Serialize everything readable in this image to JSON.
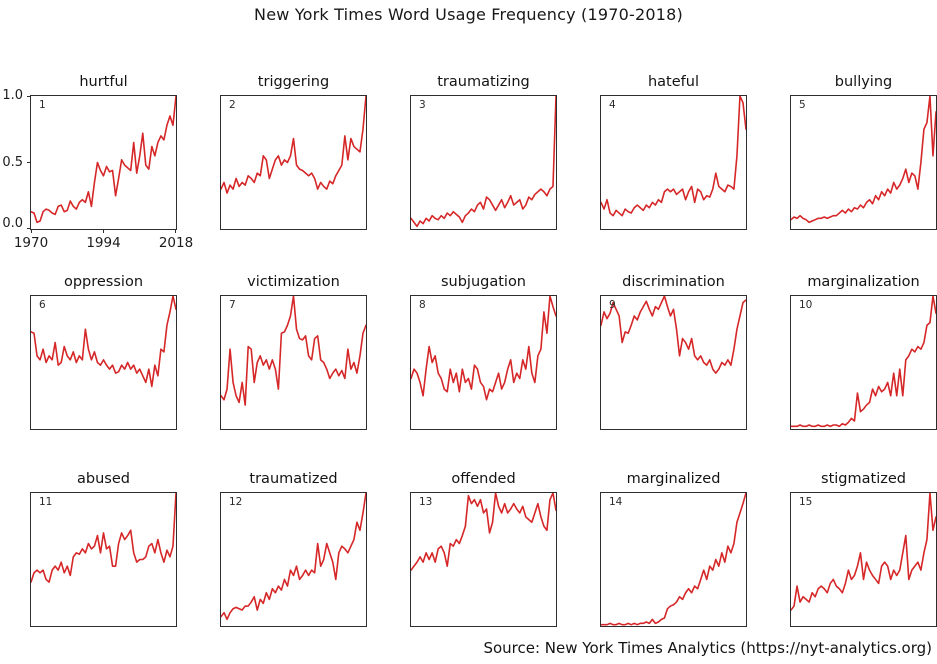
{
  "title": "New York Times Word Usage Frequency (1970-2018)",
  "source": "Source: New York Times Analytics (https://nyt-analytics.org)",
  "accent_color": "#d62728",
  "axis": {
    "y_ticks": [
      "1.0",
      "0.5",
      "0.0"
    ],
    "x_ticks": [
      "1970",
      "1994",
      "2018"
    ],
    "y_range": [
      0.0,
      1.0
    ],
    "x_range": [
      1970,
      2018
    ]
  },
  "layout": {
    "columns": 5,
    "rows": 3,
    "row_tops": [
      73,
      273,
      470
    ],
    "grid": false,
    "legend": "none"
  },
  "chart_data": [
    {
      "type": "line",
      "index": "1",
      "title": "hurtful",
      "x_start": 1970,
      "x_end": 2018,
      "values": [
        0.13,
        0.12,
        0.05,
        0.06,
        0.13,
        0.15,
        0.14,
        0.12,
        0.11,
        0.17,
        0.18,
        0.13,
        0.14,
        0.21,
        0.17,
        0.15,
        0.2,
        0.22,
        0.2,
        0.28,
        0.17,
        0.35,
        0.5,
        0.44,
        0.4,
        0.47,
        0.43,
        0.44,
        0.25,
        0.38,
        0.52,
        0.48,
        0.46,
        0.44,
        0.65,
        0.42,
        0.55,
        0.72,
        0.48,
        0.45,
        0.62,
        0.55,
        0.65,
        0.7,
        0.67,
        0.78,
        0.85,
        0.78,
        1.0
      ]
    },
    {
      "type": "line",
      "index": "2",
      "title": "triggering",
      "x_start": 1970,
      "x_end": 2018,
      "values": [
        0.3,
        0.35,
        0.27,
        0.33,
        0.3,
        0.38,
        0.32,
        0.35,
        0.33,
        0.4,
        0.38,
        0.35,
        0.42,
        0.4,
        0.55,
        0.52,
        0.38,
        0.45,
        0.52,
        0.55,
        0.48,
        0.52,
        0.5,
        0.55,
        0.68,
        0.48,
        0.45,
        0.44,
        0.42,
        0.4,
        0.42,
        0.38,
        0.3,
        0.35,
        0.32,
        0.3,
        0.36,
        0.34,
        0.4,
        0.44,
        0.48,
        0.7,
        0.52,
        0.68,
        0.62,
        0.6,
        0.58,
        0.75,
        1.0
      ]
    },
    {
      "type": "line",
      "index": "3",
      "title": "traumatizing",
      "x_start": 1970,
      "x_end": 2018,
      "values": [
        0.08,
        0.05,
        0.02,
        0.06,
        0.04,
        0.08,
        0.06,
        0.1,
        0.08,
        0.07,
        0.1,
        0.08,
        0.12,
        0.1,
        0.13,
        0.11,
        0.09,
        0.05,
        0.1,
        0.12,
        0.15,
        0.13,
        0.18,
        0.2,
        0.15,
        0.24,
        0.22,
        0.18,
        0.14,
        0.18,
        0.22,
        0.16,
        0.2,
        0.25,
        0.18,
        0.2,
        0.22,
        0.15,
        0.18,
        0.24,
        0.22,
        0.26,
        0.28,
        0.3,
        0.28,
        0.25,
        0.3,
        0.32,
        1.0
      ]
    },
    {
      "type": "line",
      "index": "4",
      "title": "hateful",
      "x_start": 1970,
      "x_end": 2018,
      "values": [
        0.2,
        0.15,
        0.22,
        0.12,
        0.1,
        0.14,
        0.12,
        0.1,
        0.15,
        0.13,
        0.12,
        0.16,
        0.18,
        0.16,
        0.14,
        0.18,
        0.16,
        0.2,
        0.18,
        0.22,
        0.2,
        0.28,
        0.3,
        0.28,
        0.3,
        0.26,
        0.28,
        0.3,
        0.22,
        0.28,
        0.32,
        0.2,
        0.3,
        0.28,
        0.22,
        0.25,
        0.24,
        0.3,
        0.42,
        0.32,
        0.3,
        0.28,
        0.33,
        0.32,
        0.3,
        0.55,
        1.0,
        0.95,
        0.75
      ]
    },
    {
      "type": "line",
      "index": "5",
      "title": "bullying",
      "x_start": 1970,
      "x_end": 2018,
      "values": [
        0.07,
        0.09,
        0.08,
        0.1,
        0.08,
        0.07,
        0.05,
        0.06,
        0.07,
        0.08,
        0.08,
        0.09,
        0.08,
        0.09,
        0.1,
        0.1,
        0.12,
        0.14,
        0.12,
        0.15,
        0.13,
        0.16,
        0.15,
        0.18,
        0.16,
        0.2,
        0.22,
        0.19,
        0.25,
        0.22,
        0.28,
        0.25,
        0.3,
        0.27,
        0.35,
        0.3,
        0.33,
        0.38,
        0.45,
        0.35,
        0.42,
        0.4,
        0.3,
        0.5,
        0.75,
        0.8,
        1.0,
        0.55,
        0.88
      ]
    },
    {
      "type": "line",
      "index": "6",
      "title": "oppression",
      "x_start": 1970,
      "x_end": 2018,
      "values": [
        0.73,
        0.72,
        0.55,
        0.52,
        0.6,
        0.5,
        0.55,
        0.52,
        0.65,
        0.48,
        0.5,
        0.62,
        0.55,
        0.52,
        0.58,
        0.5,
        0.55,
        0.52,
        0.75,
        0.6,
        0.52,
        0.58,
        0.5,
        0.48,
        0.52,
        0.48,
        0.45,
        0.48,
        0.42,
        0.43,
        0.48,
        0.45,
        0.5,
        0.45,
        0.48,
        0.42,
        0.45,
        0.4,
        0.35,
        0.45,
        0.32,
        0.48,
        0.4,
        0.6,
        0.58,
        0.78,
        0.88,
        1.0,
        0.9
      ]
    },
    {
      "type": "line",
      "index": "7",
      "title": "victimization",
      "x_start": 1970,
      "x_end": 2018,
      "values": [
        0.25,
        0.22,
        0.3,
        0.6,
        0.35,
        0.25,
        0.2,
        0.35,
        0.18,
        0.62,
        0.6,
        0.35,
        0.5,
        0.55,
        0.48,
        0.52,
        0.45,
        0.52,
        0.45,
        0.3,
        0.72,
        0.73,
        0.78,
        0.85,
        1.0,
        0.75,
        0.68,
        0.67,
        0.7,
        0.55,
        0.52,
        0.68,
        0.7,
        0.52,
        0.5,
        0.45,
        0.38,
        0.42,
        0.45,
        0.4,
        0.44,
        0.38,
        0.6,
        0.45,
        0.5,
        0.42,
        0.55,
        0.72,
        0.78
      ]
    },
    {
      "type": "line",
      "index": "8",
      "title": "subjugation",
      "x_start": 1970,
      "x_end": 2018,
      "values": [
        0.38,
        0.45,
        0.42,
        0.35,
        0.25,
        0.45,
        0.62,
        0.5,
        0.55,
        0.42,
        0.38,
        0.3,
        0.28,
        0.45,
        0.35,
        0.42,
        0.28,
        0.45,
        0.35,
        0.38,
        0.3,
        0.48,
        0.45,
        0.35,
        0.32,
        0.22,
        0.3,
        0.28,
        0.35,
        0.42,
        0.3,
        0.35,
        0.45,
        0.52,
        0.35,
        0.42,
        0.38,
        0.52,
        0.45,
        0.62,
        0.42,
        0.35,
        0.55,
        0.6,
        0.88,
        0.72,
        1.0,
        0.92,
        0.85
      ]
    },
    {
      "type": "line",
      "index": "9",
      "title": "discrimination",
      "x_start": 1970,
      "x_end": 2018,
      "values": [
        0.78,
        0.88,
        0.83,
        0.87,
        0.95,
        0.9,
        0.85,
        0.65,
        0.73,
        0.72,
        0.78,
        0.85,
        0.82,
        0.88,
        0.92,
        0.96,
        0.9,
        0.85,
        0.92,
        0.9,
        0.95,
        1.0,
        0.92,
        0.85,
        0.9,
        0.75,
        0.55,
        0.68,
        0.65,
        0.6,
        0.68,
        0.55,
        0.52,
        0.55,
        0.5,
        0.48,
        0.52,
        0.45,
        0.42,
        0.45,
        0.5,
        0.48,
        0.52,
        0.48,
        0.6,
        0.75,
        0.85,
        0.95,
        0.97
      ]
    },
    {
      "type": "line",
      "index": "10",
      "title": "marginalization",
      "x_start": 1970,
      "x_end": 2018,
      "values": [
        0.02,
        0.02,
        0.02,
        0.03,
        0.02,
        0.02,
        0.03,
        0.02,
        0.02,
        0.03,
        0.02,
        0.02,
        0.03,
        0.02,
        0.03,
        0.03,
        0.02,
        0.04,
        0.03,
        0.05,
        0.08,
        0.06,
        0.27,
        0.13,
        0.15,
        0.18,
        0.2,
        0.3,
        0.25,
        0.32,
        0.28,
        0.3,
        0.35,
        0.25,
        0.42,
        0.25,
        0.45,
        0.25,
        0.52,
        0.55,
        0.6,
        0.58,
        0.62,
        0.6,
        0.65,
        0.78,
        0.8,
        1.0,
        0.87
      ]
    },
    {
      "type": "line",
      "index": "11",
      "title": "abused",
      "x_start": 1970,
      "x_end": 2018,
      "values": [
        0.33,
        0.4,
        0.42,
        0.4,
        0.42,
        0.35,
        0.33,
        0.42,
        0.45,
        0.42,
        0.48,
        0.4,
        0.45,
        0.38,
        0.52,
        0.55,
        0.54,
        0.58,
        0.55,
        0.62,
        0.58,
        0.6,
        0.68,
        0.55,
        0.7,
        0.58,
        0.6,
        0.45,
        0.45,
        0.62,
        0.7,
        0.65,
        0.68,
        0.72,
        0.55,
        0.48,
        0.5,
        0.5,
        0.52,
        0.6,
        0.62,
        0.55,
        0.65,
        0.55,
        0.48,
        0.57,
        0.52,
        0.6,
        1.0
      ]
    },
    {
      "type": "line",
      "index": "12",
      "title": "traumatized",
      "x_start": 1970,
      "x_end": 2018,
      "values": [
        0.07,
        0.1,
        0.05,
        0.1,
        0.13,
        0.14,
        0.13,
        0.12,
        0.15,
        0.15,
        0.18,
        0.22,
        0.12,
        0.2,
        0.17,
        0.25,
        0.2,
        0.28,
        0.25,
        0.3,
        0.27,
        0.35,
        0.3,
        0.42,
        0.38,
        0.45,
        0.35,
        0.38,
        0.42,
        0.38,
        0.42,
        0.4,
        0.62,
        0.45,
        0.5,
        0.62,
        0.55,
        0.48,
        0.35,
        0.55,
        0.6,
        0.58,
        0.55,
        0.6,
        0.65,
        0.78,
        0.72,
        0.85,
        1.0
      ]
    },
    {
      "type": "line",
      "index": "13",
      "title": "offended",
      "x_start": 1970,
      "x_end": 2018,
      "values": [
        0.42,
        0.45,
        0.48,
        0.52,
        0.48,
        0.55,
        0.5,
        0.55,
        0.48,
        0.58,
        0.6,
        0.55,
        0.45,
        0.62,
        0.6,
        0.65,
        0.62,
        0.68,
        0.75,
        0.98,
        0.92,
        0.95,
        0.9,
        0.95,
        0.85,
        0.88,
        0.7,
        0.78,
        1.0,
        0.9,
        0.85,
        0.92,
        0.85,
        0.88,
        0.92,
        0.88,
        0.85,
        0.9,
        0.82,
        0.8,
        0.78,
        0.85,
        0.92,
        0.82,
        0.75,
        0.72,
        0.95,
        1.0,
        0.87
      ]
    },
    {
      "type": "line",
      "index": "14",
      "title": "marginalized",
      "x_start": 1970,
      "x_end": 2018,
      "values": [
        0.01,
        0.01,
        0.01,
        0.02,
        0.01,
        0.01,
        0.02,
        0.01,
        0.01,
        0.02,
        0.01,
        0.02,
        0.01,
        0.02,
        0.02,
        0.03,
        0.02,
        0.05,
        0.02,
        0.03,
        0.05,
        0.06,
        0.13,
        0.15,
        0.16,
        0.18,
        0.22,
        0.2,
        0.25,
        0.28,
        0.25,
        0.3,
        0.28,
        0.35,
        0.42,
        0.35,
        0.45,
        0.42,
        0.5,
        0.45,
        0.55,
        0.48,
        0.6,
        0.55,
        0.62,
        0.78,
        0.85,
        0.92,
        1.0
      ]
    },
    {
      "type": "line",
      "index": "15",
      "title": "stigmatized",
      "x_start": 1970,
      "x_end": 2018,
      "values": [
        0.12,
        0.15,
        0.3,
        0.18,
        0.22,
        0.2,
        0.18,
        0.25,
        0.22,
        0.28,
        0.3,
        0.28,
        0.25,
        0.32,
        0.35,
        0.3,
        0.28,
        0.25,
        0.32,
        0.42,
        0.35,
        0.38,
        0.45,
        0.55,
        0.35,
        0.48,
        0.42,
        0.38,
        0.35,
        0.32,
        0.45,
        0.48,
        0.45,
        0.35,
        0.42,
        0.38,
        0.42,
        0.55,
        0.68,
        0.35,
        0.42,
        0.45,
        0.48,
        0.42,
        0.55,
        0.65,
        1.0,
        0.72,
        0.82
      ]
    }
  ]
}
